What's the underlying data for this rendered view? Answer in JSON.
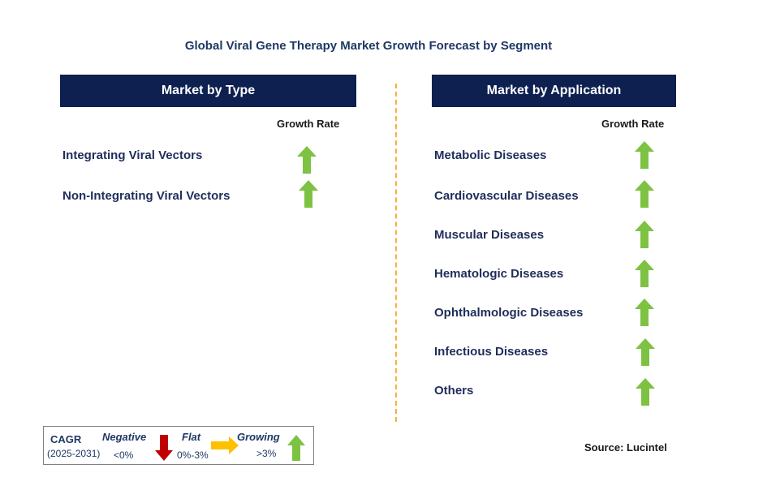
{
  "title": "Global Viral Gene Therapy Market Growth Forecast by Segment",
  "left_panel": {
    "header": "Market by Type",
    "growth_rate_label": "Growth Rate",
    "items": [
      {
        "label": "Integrating Viral Vectors",
        "trend": "growing"
      },
      {
        "label": "Non-Integrating Viral Vectors",
        "trend": "growing"
      }
    ]
  },
  "right_panel": {
    "header": "Market by Application",
    "growth_rate_label": "Growth Rate",
    "items": [
      {
        "label": "Metabolic Diseases",
        "trend": "growing"
      },
      {
        "label": "Cardiovascular Diseases",
        "trend": "growing"
      },
      {
        "label": "Muscular Diseases",
        "trend": "growing"
      },
      {
        "label": "Hematologic Diseases",
        "trend": "growing"
      },
      {
        "label": "Ophthalmologic Diseases",
        "trend": "growing"
      },
      {
        "label": "Infectious Diseases",
        "trend": "growing"
      },
      {
        "label": "Others",
        "trend": "growing"
      }
    ]
  },
  "legend": {
    "cagr_label": "CAGR",
    "period": "(2025-2031)",
    "negative_label": "Negative",
    "negative_range": "<0%",
    "flat_label": "Flat",
    "flat_range": "0%-3%",
    "growing_label": "Growing",
    "growing_range": ">3%"
  },
  "source": "Source: Lucintel",
  "colors": {
    "header_bg": "#0e2050",
    "growing_arrow": "#7dc242",
    "negative_arrow": "#c00000",
    "flat_arrow": "#ffc000",
    "divider": "#f5b336"
  }
}
